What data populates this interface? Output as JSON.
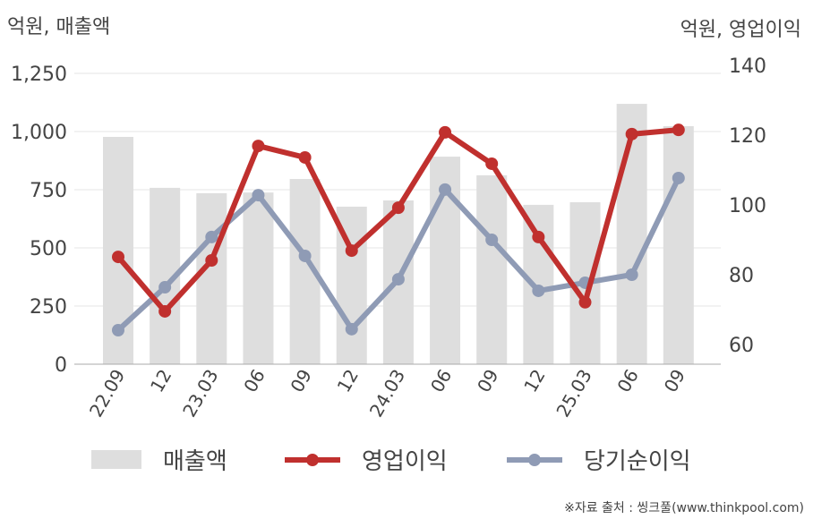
{
  "chart_data": {
    "type": "bar",
    "categories": [
      "22.09",
      "12",
      "23.03",
      "06",
      "09",
      "12",
      "24.03",
      "06",
      "09",
      "12",
      "25.03",
      "06",
      "09"
    ],
    "left_axis": {
      "label": "억원, 매출액",
      "ylim": [
        0,
        1250
      ],
      "ticks": [
        0,
        250,
        500,
        750,
        1000,
        1250
      ],
      "tick_labels": [
        "0",
        "250",
        "500",
        "750",
        "1,000",
        "1,250"
      ]
    },
    "right_axis": {
      "label": "억원, 영업이익",
      "ylim": [
        55,
        140
      ],
      "ticks": [
        60,
        80,
        100,
        120,
        140
      ],
      "tick_labels": [
        "60",
        "80",
        "100",
        "120",
        "140"
      ]
    },
    "series": [
      {
        "name": "매출액",
        "type": "bar",
        "axis": "left",
        "color": "#dedede",
        "values": [
          977,
          758,
          735,
          738,
          796,
          677,
          704,
          892,
          812,
          685,
          696,
          1119,
          1023
        ]
      },
      {
        "name": "영업이익",
        "type": "line",
        "axis": "right",
        "color": "#c0302e",
        "values": [
          85.1,
          69.5,
          84.1,
          116.9,
          113.6,
          86.9,
          99.2,
          120.8,
          111.8,
          90.8,
          72.1,
          120.3,
          121.5
        ]
      },
      {
        "name": "당기순이익",
        "type": "line",
        "axis": "right",
        "color": "#8f9bb5",
        "values": [
          64.1,
          76.4,
          90.8,
          102.8,
          85.4,
          64.4,
          78.7,
          104.4,
          90.0,
          75.4,
          77.7,
          80.0,
          107.7
        ]
      }
    ],
    "legend": "bottom",
    "grid": true,
    "source": "※자료 출처 : 씽크풀(www.thinkpool.com)"
  }
}
